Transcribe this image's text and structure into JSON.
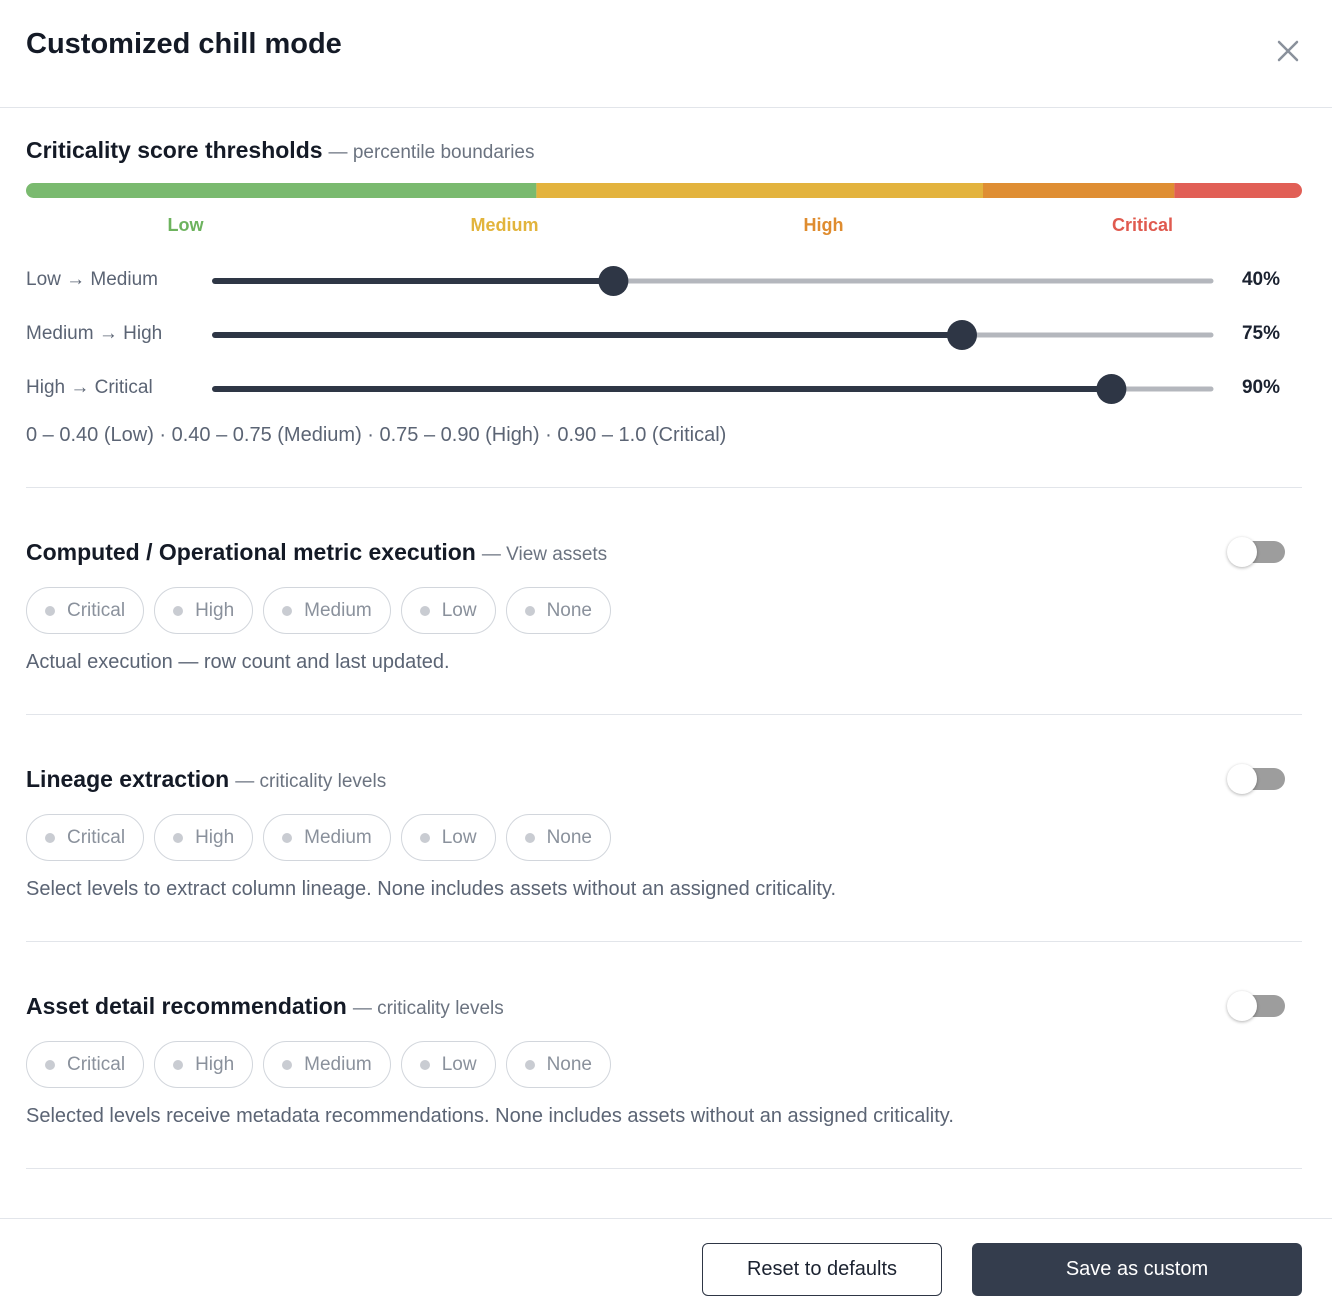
{
  "header": {
    "title": "Customized chill mode"
  },
  "thresholds": {
    "title": "Criticality score thresholds",
    "subtitle": "— percentile boundaries",
    "range": [
      0,
      100
    ],
    "levels": [
      {
        "name": "Low",
        "color": "#6db35e",
        "bar_color": "#7aba6f"
      },
      {
        "name": "Medium",
        "color": "#e2b43c",
        "bar_color": "#e3b33e"
      },
      {
        "name": "High",
        "color": "#df8c2f",
        "bar_color": "#df8e33"
      },
      {
        "name": "Critical",
        "color": "#e05a4f",
        "bar_color": "#e15f56"
      }
    ],
    "sliders": [
      {
        "label": "Low → Medium",
        "value": 40,
        "value_label": "40%"
      },
      {
        "label": "Medium → High",
        "value": 75,
        "value_label": "75%"
      },
      {
        "label": "High → Critical",
        "value": 90,
        "value_label": "90%"
      }
    ],
    "summary": "0 – 0.40 (Low) · 0.40 – 0.75 (Medium) · 0.75 – 0.90 (High) · 0.90 – 1.0 (Critical)"
  },
  "sections": [
    {
      "title": "Computed / Operational metric execution",
      "subtitle": "— View assets",
      "options": [
        "Critical",
        "High",
        "Medium",
        "Low",
        "None"
      ],
      "description": "Actual execution — row count and last updated.",
      "enabled": false
    },
    {
      "title": "Lineage extraction",
      "subtitle": "— criticality levels",
      "options": [
        "Critical",
        "High",
        "Medium",
        "Low",
        "None"
      ],
      "description": "Select levels to extract column lineage. None includes assets without an assigned criticality.",
      "enabled": false
    },
    {
      "title": "Asset detail recommendation",
      "subtitle": "— criticality levels",
      "options": [
        "Critical",
        "High",
        "Medium",
        "Low",
        "None"
      ],
      "description": "Selected levels receive metadata recommendations. None includes assets without an assigned criticality.",
      "enabled": false
    }
  ],
  "footer": {
    "reset": "Reset to defaults",
    "save": "Save as custom"
  }
}
